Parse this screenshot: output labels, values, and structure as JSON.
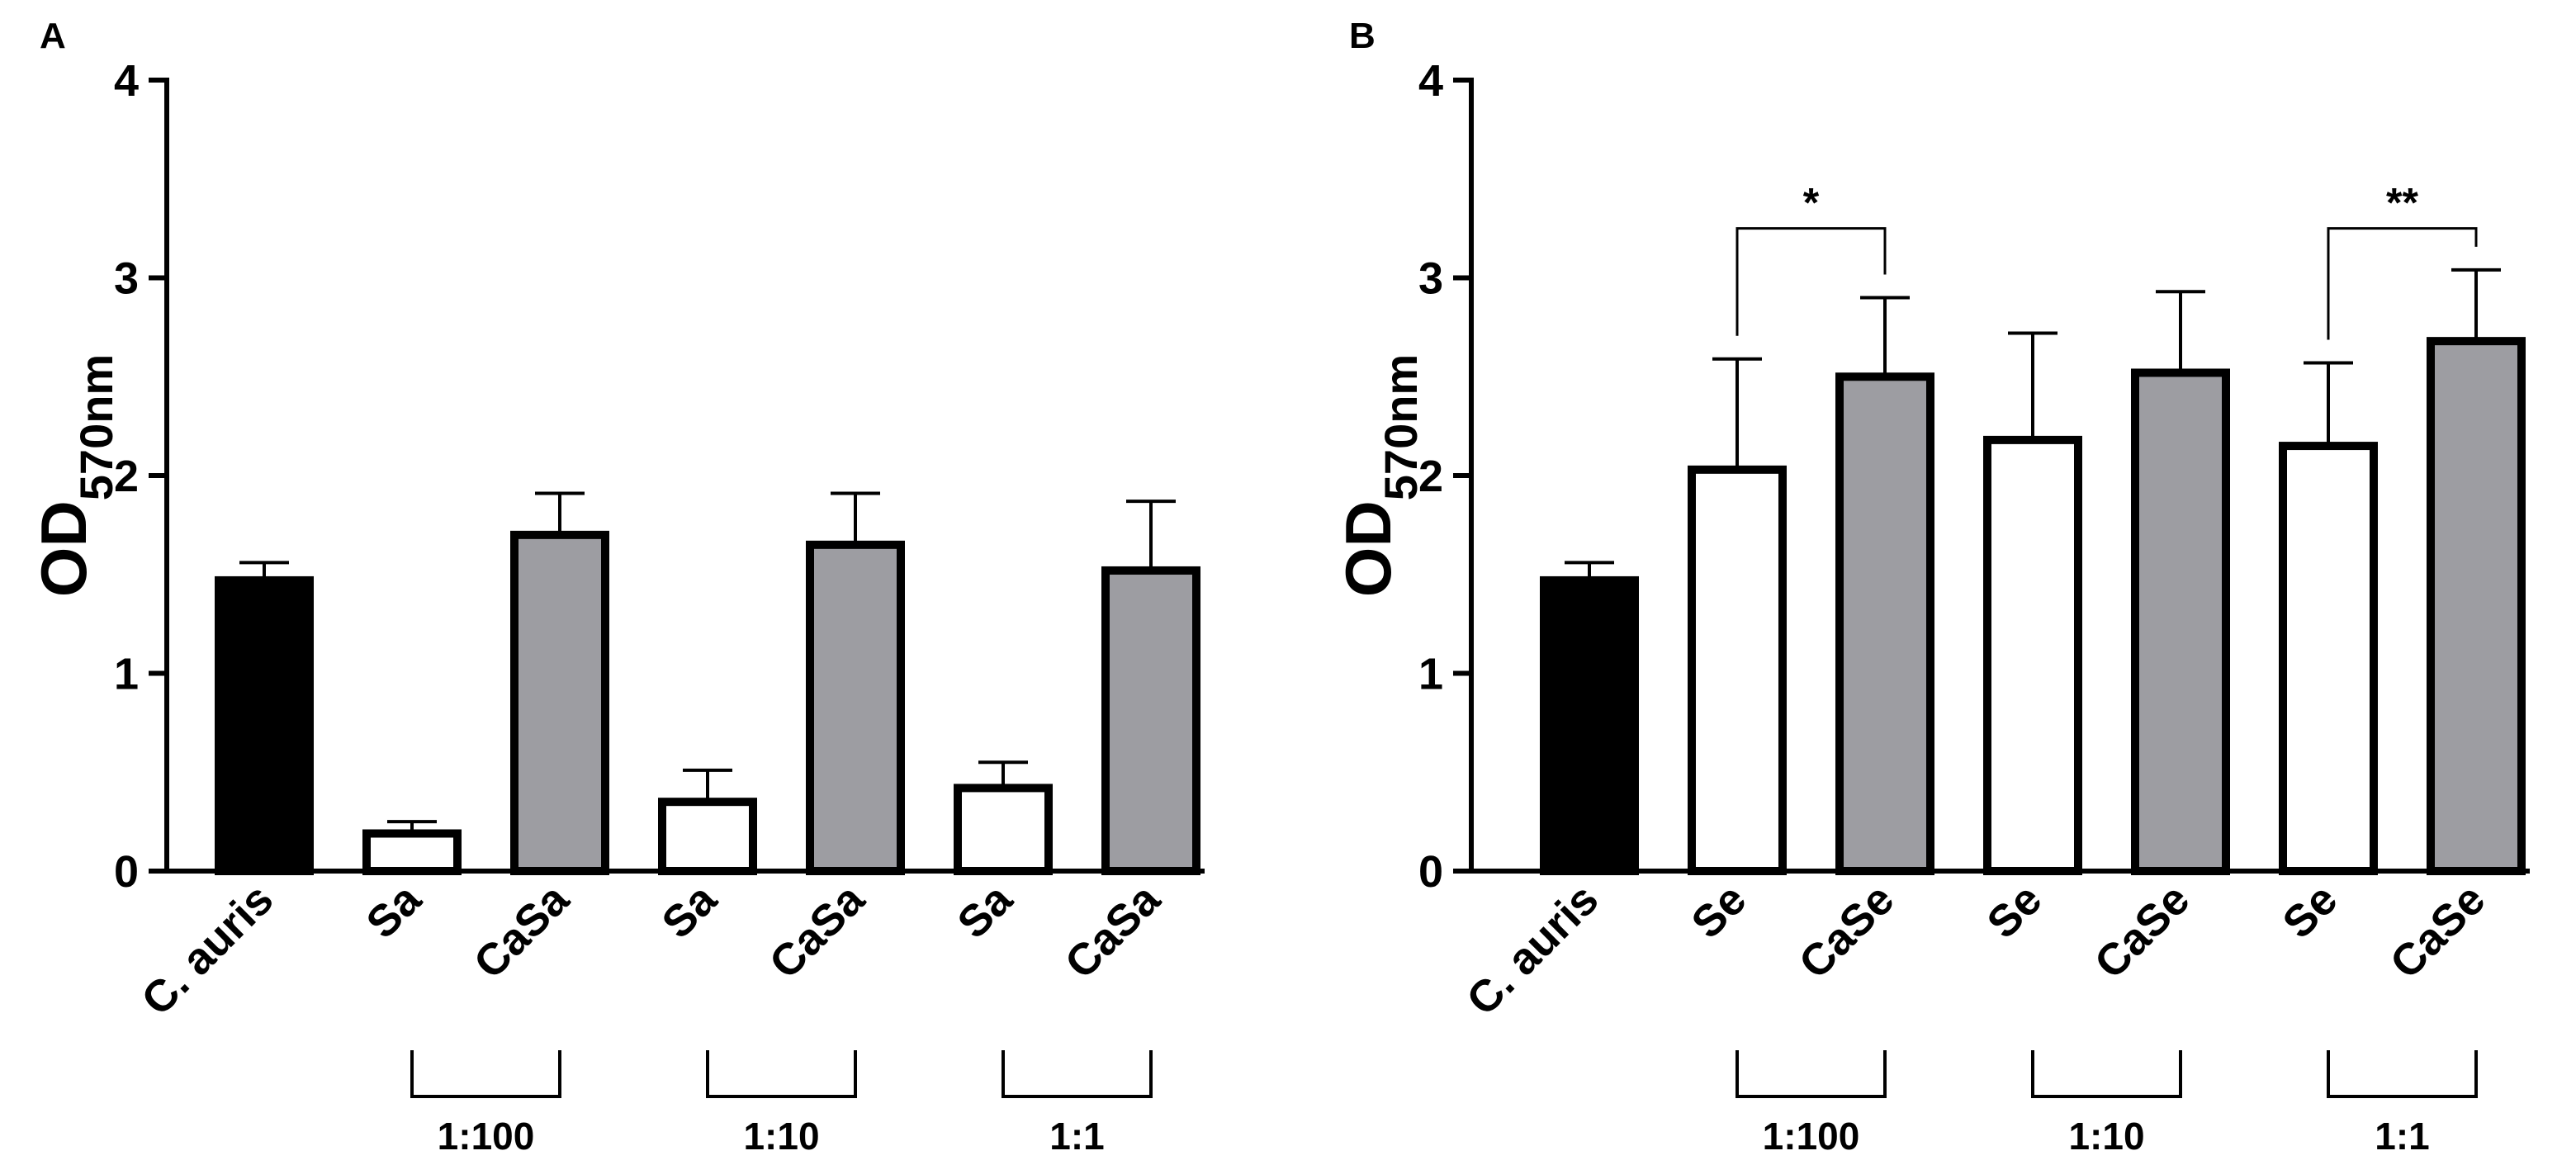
{
  "colors": {
    "control": "#000000",
    "mono": "#ffffff",
    "co": "#9d9da2",
    "stroke": "#000000"
  },
  "chart_data": [
    {
      "type": "bar",
      "panel_label": "A",
      "ylabel_main": "OD",
      "ylabel_sub": "570nm",
      "ylim": [
        0,
        4
      ],
      "yticks": [
        "0",
        "1",
        "2",
        "3",
        "4"
      ],
      "categories": [
        "C. auris",
        "Sa",
        "CaSa",
        "Sa",
        "CaSa",
        "Sa",
        "CaSa"
      ],
      "values": [
        1.47,
        0.19,
        1.7,
        0.35,
        1.65,
        0.42,
        1.52
      ],
      "errors": [
        0.09,
        0.06,
        0.21,
        0.16,
        0.26,
        0.13,
        0.35
      ],
      "fills": [
        "control",
        "mono",
        "co",
        "mono",
        "co",
        "mono",
        "co"
      ],
      "groups": [
        {
          "label": "1:100",
          "start": 1,
          "end": 2
        },
        {
          "label": "1:10",
          "start": 3,
          "end": 4
        },
        {
          "label": "1:1",
          "start": 5,
          "end": 6
        }
      ],
      "significance": []
    },
    {
      "type": "bar",
      "panel_label": "B",
      "ylabel_main": "OD",
      "ylabel_sub": "570nm",
      "ylim": [
        0,
        4
      ],
      "yticks": [
        "0",
        "1",
        "2",
        "3",
        "4"
      ],
      "categories": [
        "C. auris",
        "Se",
        "CaSe",
        "Se",
        "CaSe",
        "Se",
        "CaSe"
      ],
      "values": [
        1.47,
        2.03,
        2.5,
        2.18,
        2.52,
        2.15,
        2.68
      ],
      "errors": [
        0.09,
        0.56,
        0.4,
        0.54,
        0.41,
        0.42,
        0.36
      ],
      "fills": [
        "control",
        "mono",
        "co",
        "mono",
        "co",
        "mono",
        "co"
      ],
      "groups": [
        {
          "label": "1:100",
          "start": 1,
          "end": 2
        },
        {
          "label": "1:10",
          "start": 3,
          "end": 4
        },
        {
          "label": "1:1",
          "start": 5,
          "end": 6
        }
      ],
      "significance": [
        {
          "label": "*",
          "from": 1,
          "to": 2,
          "level": 3.25
        },
        {
          "label": "**",
          "from": 5,
          "to": 6,
          "level": 3.25
        }
      ]
    }
  ]
}
